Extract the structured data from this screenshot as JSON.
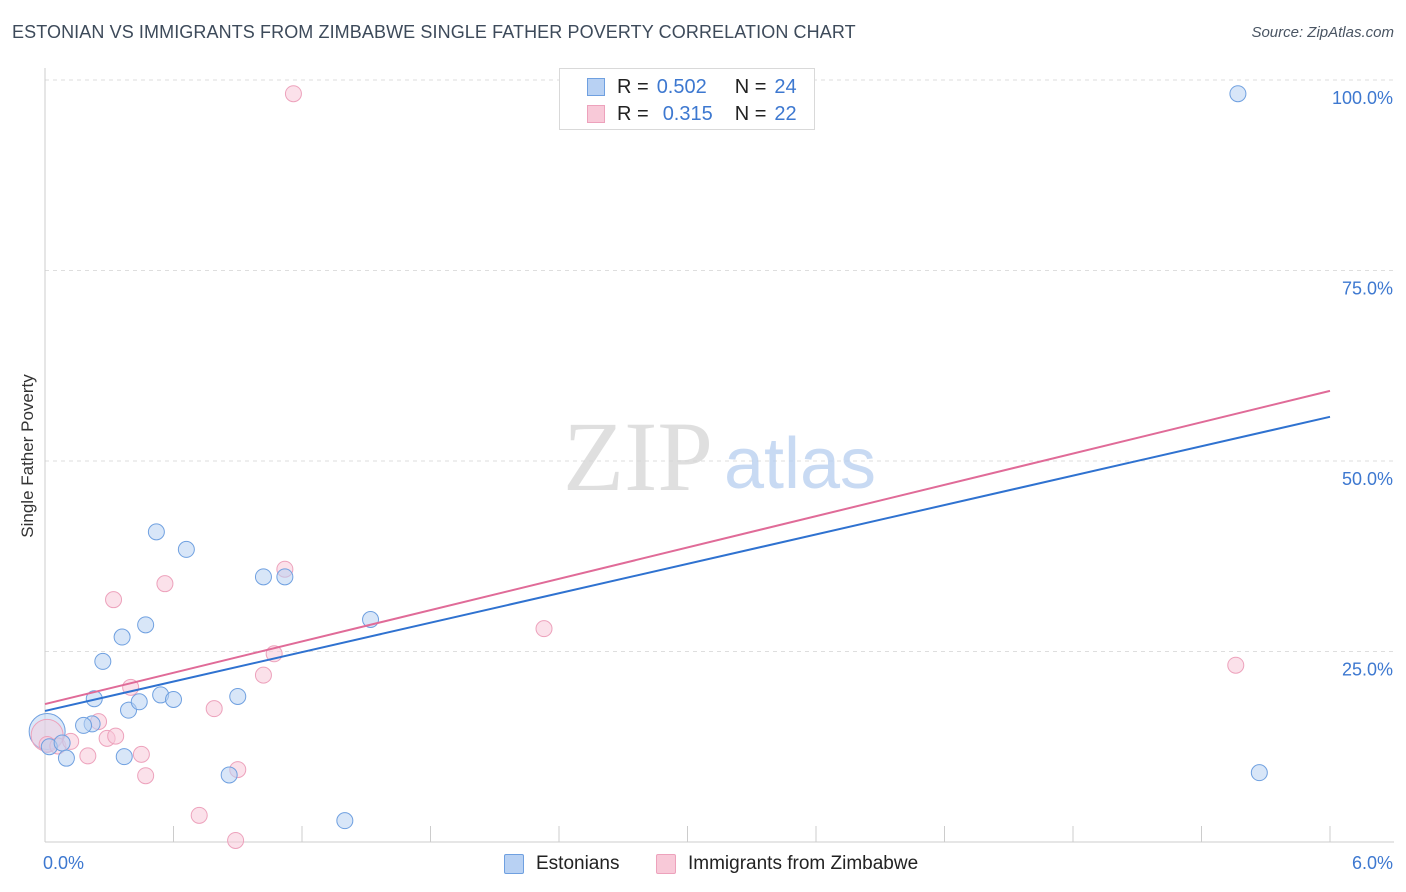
{
  "chart_data": {
    "type": "scatter",
    "title": "ESTONIAN VS IMMIGRANTS FROM ZIMBABWE SINGLE FATHER POVERTY CORRELATION CHART",
    "source": "Source: ZipAtlas.com",
    "ylabel": "Single Father Poverty",
    "xlabel": "",
    "xlim": [
      0,
      6
    ],
    "ylim": [
      0,
      100
    ],
    "x_tick_labels": {
      "min": "0.0%",
      "max": "6.0%"
    },
    "y_tick_labels": [
      "25.0%",
      "50.0%",
      "75.0%",
      "100.0%"
    ],
    "y_ticks": [
      25,
      50,
      75,
      100
    ],
    "watermark": {
      "zip": "ZIP",
      "atlas": "atlas"
    },
    "legend": {
      "r_label": "R =",
      "n_label": "N =",
      "entries": [
        {
          "r": "0.502",
          "n": "24"
        },
        {
          "r": "0.315",
          "n": "22"
        }
      ]
    },
    "series": [
      {
        "name": "Estonians",
        "color": "#6fa0e0",
        "fill": "#b8d1f3",
        "line_color": "#2f72d0",
        "trend": {
          "x": [
            0,
            6
          ],
          "y": [
            17.2,
            55.8
          ]
        },
        "points": [
          [
            0.02,
            12.5
          ],
          [
            0.08,
            13.0
          ],
          [
            0.1,
            11.0
          ],
          [
            0.22,
            15.5
          ],
          [
            0.18,
            15.3
          ],
          [
            0.23,
            18.8
          ],
          [
            0.27,
            23.7
          ],
          [
            0.37,
            11.2
          ],
          [
            0.36,
            26.9
          ],
          [
            0.39,
            17.3
          ],
          [
            0.44,
            18.4
          ],
          [
            0.47,
            28.5
          ],
          [
            0.52,
            40.7
          ],
          [
            0.54,
            19.3
          ],
          [
            0.6,
            18.7
          ],
          [
            0.66,
            38.4
          ],
          [
            0.86,
            8.8
          ],
          [
            0.9,
            19.1
          ],
          [
            1.02,
            34.8
          ],
          [
            1.12,
            34.8
          ],
          [
            1.4,
            2.8
          ],
          [
            1.52,
            29.2
          ],
          [
            5.57,
            98.2
          ],
          [
            5.67,
            9.1
          ]
        ]
      },
      {
        "name": "Immigrants from Zimbabwe",
        "color": "#eda2bc",
        "fill": "#f8c9d8",
        "line_color": "#e06b98",
        "trend": {
          "x": [
            0,
            6
          ],
          "y": [
            18.1,
            59.2
          ]
        },
        "points": [
          [
            0.01,
            12.8
          ],
          [
            0.06,
            12.6
          ],
          [
            0.12,
            13.2
          ],
          [
            0.2,
            11.3
          ],
          [
            0.25,
            15.8
          ],
          [
            0.29,
            13.6
          ],
          [
            0.32,
            31.8
          ],
          [
            0.33,
            13.9
          ],
          [
            0.4,
            20.3
          ],
          [
            0.45,
            11.5
          ],
          [
            0.47,
            8.7
          ],
          [
            0.56,
            33.9
          ],
          [
            0.72,
            3.5
          ],
          [
            0.79,
            17.5
          ],
          [
            0.89,
            0.2
          ],
          [
            0.9,
            9.5
          ],
          [
            1.02,
            21.9
          ],
          [
            1.07,
            24.7
          ],
          [
            1.12,
            35.8
          ],
          [
            1.16,
            98.2
          ],
          [
            2.33,
            28.0
          ],
          [
            5.56,
            23.2
          ]
        ]
      }
    ]
  }
}
